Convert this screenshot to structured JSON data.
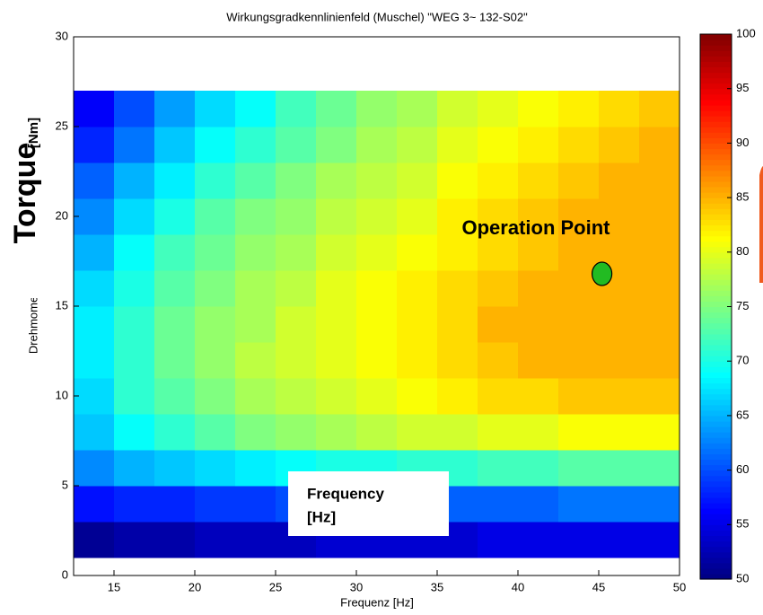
{
  "chart_data": {
    "type": "contour",
    "title": "Wirkungsgradkennlinienfeld (Muschel) \"WEG 3~ 132-S02\"",
    "xlabel": "Frequenz [Hz]",
    "ylabel": "Drehmoment [Nm]",
    "xlim": [
      12.5,
      50
    ],
    "ylim": [
      0,
      30
    ],
    "xticks": [
      15,
      20,
      25,
      30,
      35,
      40,
      45,
      50
    ],
    "yticks": [
      0,
      5,
      10,
      15,
      20,
      25,
      30
    ],
    "x_edges": [
      12.5,
      15,
      17.5,
      20,
      22.5,
      25,
      27.5,
      30,
      32.5,
      35,
      37.5,
      40,
      42.5,
      45,
      47.5,
      50
    ],
    "y_edges": [
      1,
      3,
      5,
      7,
      9,
      11,
      13,
      15,
      17,
      19,
      21,
      23,
      25,
      27
    ],
    "z": [
      [
        51,
        52,
        52,
        53,
        53,
        53,
        54,
        54,
        54,
        54,
        55,
        55,
        55,
        55,
        55
      ],
      [
        57,
        58,
        58,
        59,
        59,
        60,
        60,
        60,
        61,
        61,
        61,
        61,
        62,
        62,
        62
      ],
      [
        63,
        65,
        66,
        67,
        68,
        69,
        70,
        70,
        71,
        71,
        72,
        72,
        73,
        73,
        73
      ],
      [
        66,
        69,
        71,
        73,
        75,
        76,
        77,
        78,
        79,
        79,
        80,
        80,
        81,
        81,
        81
      ],
      [
        67,
        71,
        73,
        75,
        77,
        78,
        79,
        80,
        81,
        82,
        83,
        83,
        84,
        84,
        84
      ],
      [
        68,
        71,
        74,
        76,
        78,
        79,
        80,
        81,
        82,
        83,
        84,
        85,
        85,
        85,
        85
      ],
      [
        68,
        71,
        74,
        76,
        77,
        79,
        80,
        81,
        82,
        83,
        85,
        85,
        85,
        85,
        85
      ],
      [
        67,
        70,
        73,
        75,
        77,
        78,
        80,
        81,
        82,
        83,
        84,
        85,
        85,
        85,
        85
      ],
      [
        65,
        69,
        72,
        74,
        76,
        77,
        79,
        80,
        81,
        82,
        83,
        84,
        85,
        85,
        85
      ],
      [
        63,
        67,
        70,
        73,
        75,
        76,
        78,
        79,
        80,
        82,
        83,
        84,
        85,
        85,
        85
      ],
      [
        61,
        65,
        68,
        71,
        73,
        75,
        77,
        78,
        79,
        81,
        82,
        83,
        84,
        85,
        85
      ],
      [
        58,
        62,
        66,
        69,
        71,
        73,
        75,
        77,
        78,
        80,
        81,
        82,
        83,
        84,
        85
      ],
      [
        56,
        60,
        64,
        67,
        69,
        72,
        74,
        76,
        77,
        79,
        80,
        81,
        82,
        83,
        84
      ]
    ],
    "colormap": "jet",
    "clim": [
      50,
      100
    ],
    "cticks": [
      50,
      55,
      60,
      65,
      70,
      75,
      80,
      85,
      90,
      95,
      100
    ],
    "operation_point": {
      "label": "Operation Point",
      "x": 45.2,
      "y": 16.8,
      "color": "#22bb22"
    },
    "overlay_ylabel": {
      "text": "Torque",
      "unit": "[Nm]"
    },
    "overlay_xlabel": {
      "line1": "Frequency",
      "line2": "[Hz]"
    }
  }
}
